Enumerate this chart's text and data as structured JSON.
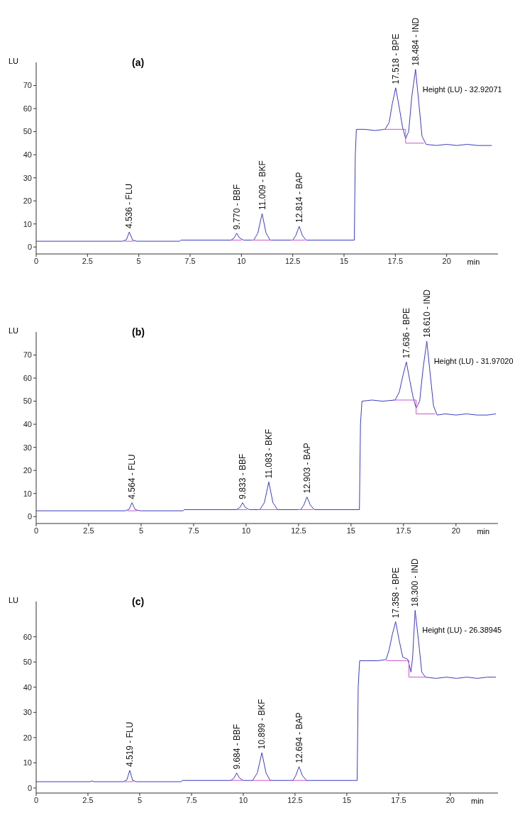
{
  "chart_data": [
    {
      "type": "line",
      "title": "(a)",
      "xlabel": "min",
      "ylabel": "LU",
      "xlim": [
        0,
        22.5
      ],
      "ylim": [
        -3,
        80
      ],
      "xticks": [
        0,
        2.5,
        5,
        7.5,
        10,
        12.5,
        15,
        17.5,
        20
      ],
      "yticks": [
        0,
        10,
        20,
        30,
        40,
        50,
        60,
        70
      ],
      "grid": false,
      "legend": false,
      "marker": "none",
      "line_style": "solid",
      "series": [
        {
          "color": "#3c3cc0",
          "x": [
            0,
            4.2,
            4.4,
            4.536,
            4.7,
            4.9,
            7.0,
            7.05,
            9.5,
            9.65,
            9.77,
            9.9,
            10.1,
            10.6,
            10.8,
            11.009,
            11.2,
            11.4,
            12.5,
            12.65,
            12.814,
            12.97,
            13.15,
            15.5,
            15.55,
            15.6,
            16.0,
            16.5,
            17.0,
            17.2,
            17.35,
            17.518,
            17.7,
            17.85,
            18.0,
            18.15,
            18.3,
            18.484,
            18.65,
            18.8,
            19.0,
            19.5,
            20,
            20.5,
            21,
            21.5,
            22.2
          ],
          "values": [
            2.5,
            2.5,
            3.2,
            6.5,
            3,
            2.5,
            2.5,
            3,
            3,
            4,
            6,
            4,
            3,
            3,
            6,
            14.5,
            6,
            3,
            3,
            5,
            9,
            5,
            3,
            3,
            40,
            51,
            51,
            50.5,
            51,
            54,
            62,
            69,
            60,
            52,
            47,
            50,
            65,
            77,
            62,
            48,
            44.5,
            44,
            44.5,
            44,
            44.5,
            44,
            44
          ]
        },
        {
          "color": "#cc55cc",
          "x": [
            4.3,
            4.75,
            4.8,
            9.5,
            10.0,
            10.2,
            10.5,
            11.45,
            11.9,
            12.4,
            13.1,
            14,
            16.9,
            18.0,
            18.0,
            18.9
          ],
          "values": [
            2.5,
            2.5,
            null,
            3,
            3,
            null,
            3,
            3,
            null,
            3,
            3,
            null,
            51,
            51,
            45,
            45
          ]
        }
      ],
      "annotations": [
        {
          "text": "4.536 -  FLU",
          "x": 4.536,
          "y": 6.5
        },
        {
          "text": "9.770 -  BBF",
          "x": 9.77,
          "y": 6
        },
        {
          "text": "11.009 -  BKF",
          "x": 11.009,
          "y": 14.5
        },
        {
          "text": "12.814 -  BAP",
          "x": 12.814,
          "y": 9
        },
        {
          "text": "17.518 -  BPE",
          "x": 17.518,
          "y": 69
        },
        {
          "text": "18.484 -  IND",
          "x": 18.484,
          "y": 77
        },
        "Height (LU) - 32.92071"
      ]
    },
    {
      "type": "line",
      "title": "(b)",
      "xlabel": "min",
      "ylabel": "LU",
      "xlim": [
        0,
        22
      ],
      "ylim": [
        -3,
        80
      ],
      "xticks": [
        0,
        2.5,
        5,
        7.5,
        10,
        12.5,
        15,
        17.5,
        20
      ],
      "yticks": [
        0,
        10,
        20,
        30,
        40,
        50,
        60,
        70
      ],
      "grid": false,
      "legend": false,
      "marker": "none",
      "line_style": "solid",
      "series": [
        {
          "color": "#3c3cc0",
          "x": [
            0,
            4.25,
            4.43,
            4.564,
            4.72,
            4.95,
            7.0,
            7.05,
            9.55,
            9.71,
            9.833,
            9.96,
            10.15,
            10.65,
            10.87,
            11.083,
            11.28,
            11.5,
            12.6,
            12.75,
            12.903,
            13.06,
            13.25,
            15.4,
            15.45,
            15.52,
            16.0,
            16.5,
            17.1,
            17.3,
            17.47,
            17.636,
            17.8,
            17.95,
            18.1,
            18.27,
            18.43,
            18.61,
            18.78,
            18.93,
            19.1,
            19.5,
            20,
            20.5,
            21,
            21.5,
            21.9
          ],
          "values": [
            2.5,
            2.5,
            3.2,
            6,
            3,
            2.5,
            2.5,
            3,
            3,
            4,
            6,
            4,
            3,
            3,
            6,
            15,
            6,
            3,
            3,
            5,
            8.5,
            5,
            3,
            3,
            40,
            50,
            50.5,
            50,
            50.5,
            54,
            61,
            67,
            59,
            52,
            47,
            50,
            64,
            76,
            61,
            48,
            44,
            44.5,
            44,
            44.5,
            44,
            44,
            44.5
          ]
        },
        {
          "color": "#cc55cc",
          "x": [
            4.35,
            4.8,
            4.85,
            9.55,
            10.05,
            10.3,
            10.6,
            11.5,
            12.0,
            12.5,
            13.2,
            14,
            17.0,
            18.1,
            18.1,
            19.0
          ],
          "values": [
            2.5,
            2.5,
            null,
            3,
            3,
            null,
            3,
            3,
            null,
            3,
            3,
            null,
            50.5,
            50.5,
            44.5,
            44.5
          ]
        }
      ],
      "annotations": [
        {
          "text": "4.564 -  FLU",
          "x": 4.564,
          "y": 6
        },
        {
          "text": "9.833 -  BBF",
          "x": 9.833,
          "y": 6
        },
        {
          "text": "11.083 -  BKF",
          "x": 11.083,
          "y": 15
        },
        {
          "text": "12.903 -  BAP",
          "x": 12.903,
          "y": 8.5
        },
        {
          "text": "17.636 -  BPE",
          "x": 17.636,
          "y": 67
        },
        {
          "text": "18.610 -  IND",
          "x": 18.61,
          "y": 76
        },
        "Height (LU) - 31.97020"
      ]
    },
    {
      "type": "line",
      "title": "(c)",
      "xlabel": "min",
      "ylabel": "LU",
      "xlim": [
        0,
        22.3
      ],
      "ylim": [
        -2,
        74
      ],
      "xticks": [
        0,
        2.5,
        5,
        7.5,
        10,
        12.5,
        15,
        17.5,
        20
      ],
      "yticks": [
        0,
        10,
        20,
        30,
        40,
        50,
        60
      ],
      "grid": false,
      "legend": false,
      "marker": "none",
      "line_style": "solid",
      "series": [
        {
          "color": "#3c3cc0",
          "x": [
            0,
            2.6,
            2.7,
            2.8,
            4.2,
            4.38,
            4.519,
            4.66,
            4.85,
            7.0,
            7.05,
            9.4,
            9.56,
            9.684,
            9.81,
            10.0,
            10.45,
            10.68,
            10.899,
            11.1,
            11.3,
            12.4,
            12.54,
            12.694,
            12.85,
            13.05,
            15.5,
            15.55,
            15.62,
            16.0,
            16.5,
            16.9,
            17.05,
            17.2,
            17.358,
            17.52,
            17.7,
            17.95,
            18.1,
            18.18,
            18.3,
            18.47,
            18.62,
            18.8,
            19.3,
            19.8,
            20.3,
            20.8,
            21.3,
            21.8,
            22.2
          ],
          "values": [
            2.5,
            2.5,
            2.8,
            2.5,
            2.5,
            3.2,
            7,
            3,
            2.5,
            2.5,
            3,
            3,
            4,
            6,
            4,
            3,
            3,
            6,
            14,
            6,
            3,
            3,
            5,
            8.5,
            5,
            3,
            3,
            40,
            50.5,
            50.5,
            50.5,
            51,
            55,
            61,
            66,
            59,
            52,
            51,
            46,
            52,
            70.5,
            58,
            46,
            44,
            43.5,
            44,
            43.5,
            44,
            43.5,
            44,
            44
          ]
        },
        {
          "color": "#cc55cc",
          "x": [
            4.25,
            4.7,
            4.75,
            9.35,
            9.95,
            10.2,
            10.4,
            11.4,
            11.9,
            12.3,
            13.1,
            14,
            16.9,
            18.0,
            18.0,
            18.8
          ],
          "values": [
            2.5,
            2.5,
            null,
            3,
            3,
            null,
            3,
            3,
            null,
            3,
            3,
            null,
            50.5,
            50.5,
            44,
            44
          ]
        }
      ],
      "annotations": [
        {
          "text": "4.519 -  FLU",
          "x": 4.519,
          "y": 7
        },
        {
          "text": "9.684 -  BBF",
          "x": 9.684,
          "y": 6
        },
        {
          "text": "10.899 -  BKF",
          "x": 10.899,
          "y": 14
        },
        {
          "text": "12.694 -  BAP",
          "x": 12.694,
          "y": 8.5
        },
        {
          "text": "17.358 -  BPE",
          "x": 17.358,
          "y": 66
        },
        {
          "text": "18.300 -  IND",
          "x": 18.3,
          "y": 70.5
        },
        "Height (LU) - 26.38945"
      ]
    }
  ]
}
